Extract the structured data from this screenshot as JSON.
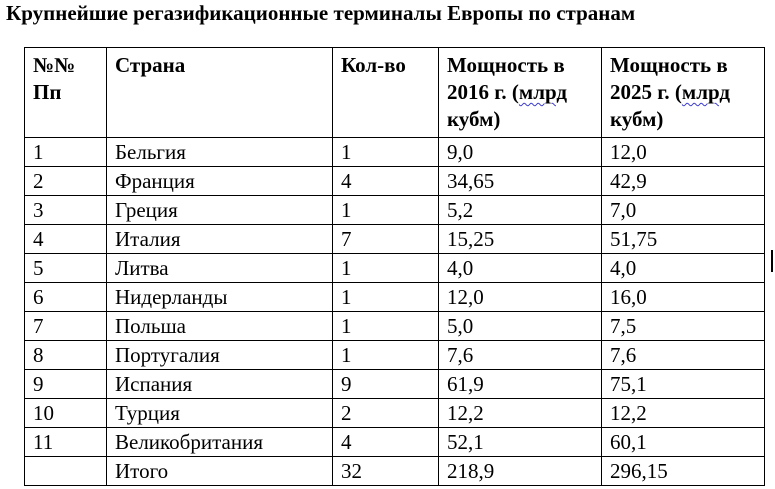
{
  "title": "Крупнейшие регазификационные терминалы Европы по странам",
  "table": {
    "headers": {
      "num": "№№ Пп",
      "country": "Страна",
      "count": "Кол-во",
      "cap2016": "Мощность в 2016 г. (",
      "cap2016_unit": "млрд",
      "cap2016_tail": " кубм)",
      "cap2025": "Мощность в 2025 г. (",
      "cap2025_unit": "млрд",
      "cap2025_tail": " кубм)"
    },
    "rows": [
      {
        "num": "1",
        "country": "Бельгия",
        "count": "1",
        "cap2016": "9,0",
        "cap2025": "12,0"
      },
      {
        "num": "2",
        "country": "Франция",
        "count": "4",
        "cap2016": "34,65",
        "cap2025": "42,9"
      },
      {
        "num": "3",
        "country": "Греция",
        "count": "1",
        "cap2016": "5,2",
        "cap2025": "7,0"
      },
      {
        "num": "4",
        "country": "Италия",
        "count": "7",
        "cap2016": "15,25",
        "cap2025": "51,75"
      },
      {
        "num": "5",
        "country": "Литва",
        "count": "1",
        "cap2016": "4,0",
        "cap2025": "4,0"
      },
      {
        "num": "6",
        "country": "Нидерланды",
        "count": "1",
        "cap2016": "12,0",
        "cap2025": "16,0"
      },
      {
        "num": "7",
        "country": "Польша",
        "count": "1",
        "cap2016": "5,0",
        "cap2025": "7,5"
      },
      {
        "num": "8",
        "country": "Португалия",
        "count": "1",
        "cap2016": "7,6",
        "cap2025": "7,6"
      },
      {
        "num": "9",
        "country": "Испания",
        "count": "9",
        "cap2016": "61,9",
        "cap2025": "75,1"
      },
      {
        "num": "10",
        "country": "Турция",
        "count": "2",
        "cap2016": "12,2",
        "cap2025": "12,2"
      },
      {
        "num": "11",
        "country": "Великобритания",
        "count": "4",
        "cap2016": "52,1",
        "cap2025": "60,1"
      },
      {
        "num": "",
        "country": "Итого",
        "count": "32",
        "cap2016": "218,9",
        "cap2025": "296,15"
      }
    ]
  }
}
